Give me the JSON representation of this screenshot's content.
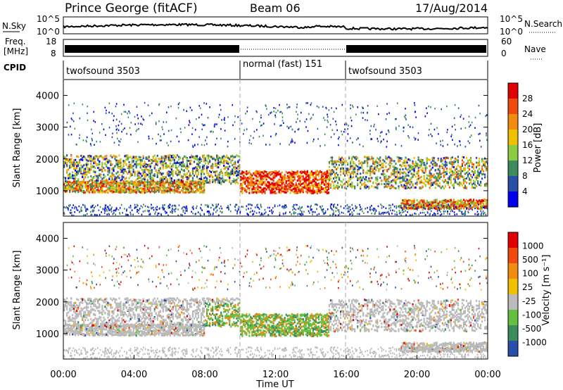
{
  "header": {
    "station": "Prince George (fitACF)",
    "beam": "Beam 06",
    "date": "17/Aug/2014"
  },
  "noise_panel": {
    "left_label": "N.Sky",
    "right_label": "N.Search",
    "ticks_left": [
      "10^5",
      "10^0"
    ],
    "ticks_right": [
      "10^5",
      "10^0"
    ]
  },
  "freq_panel": {
    "left_label_1": "Freq.",
    "left_label_2": "[MHz]",
    "right_label": "Nave",
    "ticks_left": [
      "18",
      "8"
    ],
    "ticks_right": [
      "60",
      "0"
    ]
  },
  "cpid_panel": {
    "label": "CPID",
    "segments": [
      "twofsound 3503",
      "normal (fast) 151",
      "twofsound 3503"
    ]
  },
  "chart_data": [
    {
      "type": "heatmap",
      "quantity": "power",
      "ylabel": "Slant Range [km]",
      "colorbar_label": "Power [dB]",
      "colorbar_ticks": [
        "28",
        "24",
        "20",
        "16",
        "12",
        "8",
        "4"
      ],
      "yticks": [
        "4000",
        "3000",
        "2000",
        "1000"
      ],
      "ylim": [
        200,
        4500
      ],
      "colors": [
        "#0000ee",
        "#2a4fa8",
        "#3c8c5c",
        "#8ccc40",
        "#f0c000",
        "#f08c10",
        "#f04a10",
        "#e00000"
      ]
    },
    {
      "type": "heatmap",
      "quantity": "velocity",
      "ylabel": "Slant Range [km]",
      "colorbar_label": "Velocity [m s⁻¹]",
      "colorbar_ticks": [
        "1000",
        "500",
        "100",
        "25",
        "-25",
        "-100",
        "-500",
        "-1000"
      ],
      "yticks": [
        "4000",
        "3000",
        "2000",
        "1000"
      ],
      "ylim": [
        200,
        4500
      ],
      "colors": [
        "#2a4fa8",
        "#3c8c5c",
        "#66c040",
        "#bbbbbb",
        "#f0c000",
        "#f08c10",
        "#f04a10",
        "#e00000"
      ]
    }
  ],
  "x_axis": {
    "ticks": [
      "00:00",
      "04:00",
      "08:00",
      "12:00",
      "16:00",
      "20:00",
      "00:00"
    ],
    "xlabel": "Time UT"
  }
}
